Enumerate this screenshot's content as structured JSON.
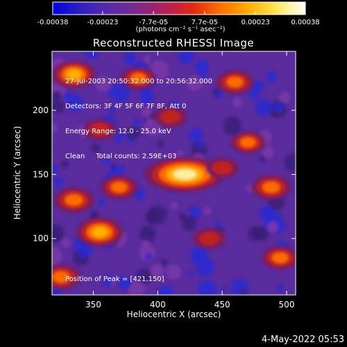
{
  "app": {
    "footer_date": "4-May-2022 05:53"
  },
  "colorbar": {
    "tick_labels": [
      "-0.00038",
      "-0.00023",
      "-7.7e-05",
      "7.7e-05",
      "0.00023",
      "0.00038"
    ],
    "tick_values": [
      -0.00038,
      -0.00023,
      -7.7e-05,
      7.7e-05,
      0.00023,
      0.00038
    ],
    "range": [
      -0.00038,
      0.00038
    ],
    "unit_label": "(photons cm⁻² s⁻¹ asec⁻²)",
    "colors": [
      "#0000e0",
      "#3020c0",
      "#5a2aa8",
      "#7a2a8c",
      "#b0205a",
      "#e02a10",
      "#ff7000",
      "#ffb000",
      "#ffe860",
      "#ffffff"
    ]
  },
  "chart_data": {
    "type": "heatmap",
    "title": "Reconstructed RHESSI Image",
    "xlabel": "Heliocentric X (arcsec)",
    "ylabel": "Heliocentric Y (arcsec)",
    "xlim": [
      318,
      507
    ],
    "ylim": [
      56,
      246
    ],
    "xticks": [
      350,
      400,
      450,
      500
    ],
    "yticks": [
      100,
      150,
      200
    ],
    "grid": false,
    "annotations": [
      "27-Jul-2003 20:50:32.000 to 20:56:32.000",
      "Detectors: 3F 4F 5F 6F 7F 8F, Att 0",
      "Energy Range: 12.0 - 25.0 keV",
      "Clean     Total counts: 2.59E+03",
      "Position of Peak = [421,150]"
    ],
    "peak": {
      "x": 421,
      "y": 150
    },
    "bright_sources": [
      {
        "x": 421,
        "y": 150,
        "level": 1.0
      },
      {
        "x": 488,
        "y": 140,
        "level": 0.6
      },
      {
        "x": 355,
        "y": 105,
        "level": 0.78
      },
      {
        "x": 335,
        "y": 228,
        "level": 0.7
      },
      {
        "x": 460,
        "y": 222,
        "level": 0.55
      },
      {
        "x": 335,
        "y": 130,
        "level": 0.62
      },
      {
        "x": 370,
        "y": 140,
        "level": 0.55
      },
      {
        "x": 470,
        "y": 175,
        "level": 0.5
      },
      {
        "x": 495,
        "y": 85,
        "level": 0.55
      },
      {
        "x": 325,
        "y": 70,
        "level": 0.6
      },
      {
        "x": 440,
        "y": 100,
        "level": 0.45
      },
      {
        "x": 385,
        "y": 225,
        "level": 0.5
      },
      {
        "x": 410,
        "y": 195,
        "level": 0.45
      },
      {
        "x": 355,
        "y": 185,
        "level": 0.45
      },
      {
        "x": 450,
        "y": 155,
        "level": 0.45
      }
    ]
  }
}
